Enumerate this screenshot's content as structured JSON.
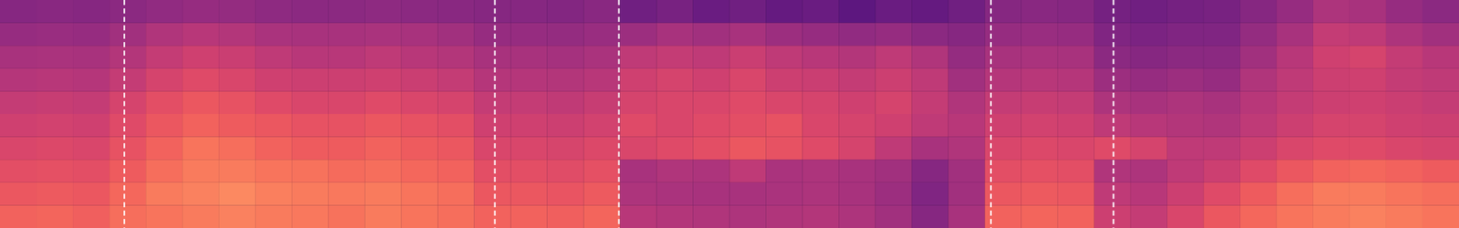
{
  "chart_data": {
    "type": "heatmap",
    "xlim": [
      0,
      100
    ],
    "ylim": [
      0,
      10
    ],
    "tick_labels": false,
    "colorlim": [
      0,
      1
    ],
    "dividers": [
      8.5,
      33.9,
      42.4,
      67.9,
      76.3
    ],
    "cells": [
      [
        0.72,
        0.73,
        0.71,
        0.76,
        0.78,
        0.8,
        0.82,
        0.8,
        0.79,
        0.77,
        0.8,
        0.78,
        0.76,
        0.72,
        0.72,
        0.71,
        0.73,
        0.48,
        0.46,
        0.45,
        0.44,
        0.45,
        0.46,
        0.44,
        0.4,
        0.3,
        0.42,
        0.72,
        0.73,
        0.72,
        0.55,
        0.52,
        0.6,
        0.68,
        0.74,
        0.78,
        0.8,
        0.82,
        0.8,
        0.78
      ],
      [
        0.68,
        0.69,
        0.68,
        0.74,
        0.8,
        0.82,
        0.84,
        0.81,
        0.8,
        0.79,
        0.8,
        0.78,
        0.76,
        0.68,
        0.68,
        0.67,
        0.69,
        0.44,
        0.43,
        0.42,
        0.42,
        0.43,
        0.44,
        0.42,
        0.38,
        0.28,
        0.4,
        0.68,
        0.69,
        0.68,
        0.5,
        0.48,
        0.55,
        0.62,
        0.7,
        0.76,
        0.8,
        0.8,
        0.78,
        0.76
      ],
      [
        0.64,
        0.65,
        0.64,
        0.7,
        0.76,
        0.8,
        0.8,
        0.78,
        0.77,
        0.75,
        0.76,
        0.74,
        0.72,
        0.64,
        0.64,
        0.63,
        0.65,
        0.42,
        0.45,
        0.44,
        0.5,
        0.43,
        0.44,
        0.42,
        0.4,
        0.3,
        0.4,
        0.64,
        0.65,
        0.64,
        0.45,
        0.44,
        0.5,
        0.55,
        0.62,
        0.68,
        0.72,
        0.74,
        0.72,
        0.7
      ],
      [
        0.6,
        0.61,
        0.6,
        0.66,
        0.72,
        0.78,
        0.76,
        0.72,
        0.7,
        0.7,
        0.72,
        0.7,
        0.68,
        0.6,
        0.6,
        0.59,
        0.61,
        0.6,
        0.62,
        0.64,
        0.68,
        0.66,
        0.62,
        0.58,
        0.5,
        0.42,
        0.45,
        0.6,
        0.61,
        0.6,
        0.62,
        0.58,
        0.5,
        0.5,
        0.55,
        0.6,
        0.62,
        0.62,
        0.6,
        0.58
      ],
      [
        0.56,
        0.57,
        0.56,
        0.62,
        0.68,
        0.72,
        0.7,
        0.68,
        0.66,
        0.66,
        0.68,
        0.66,
        0.64,
        0.56,
        0.56,
        0.55,
        0.57,
        0.62,
        0.6,
        0.62,
        0.64,
        0.66,
        0.6,
        0.58,
        0.56,
        0.5,
        0.48,
        0.56,
        0.57,
        0.56,
        0.5,
        0.48,
        0.46,
        0.45,
        0.5,
        0.55,
        0.58,
        0.58,
        0.56,
        0.55
      ],
      [
        0.52,
        0.53,
        0.52,
        0.58,
        0.64,
        0.68,
        0.66,
        0.62,
        0.6,
        0.6,
        0.62,
        0.6,
        0.58,
        0.52,
        0.52,
        0.51,
        0.53,
        0.58,
        0.6,
        0.6,
        0.62,
        0.6,
        0.58,
        0.56,
        0.58,
        0.52,
        0.45,
        0.52,
        0.53,
        0.52,
        0.44,
        0.42,
        0.44,
        0.42,
        0.48,
        0.52,
        0.55,
        0.56,
        0.54,
        0.52
      ],
      [
        0.47,
        0.48,
        0.47,
        0.52,
        0.58,
        0.62,
        0.6,
        0.56,
        0.55,
        0.55,
        0.56,
        0.54,
        0.52,
        0.47,
        0.47,
        0.46,
        0.48,
        0.56,
        0.58,
        0.56,
        0.6,
        0.55,
        0.54,
        0.52,
        0.55,
        0.5,
        0.4,
        0.47,
        0.48,
        0.47,
        0.38,
        0.36,
        0.38,
        0.36,
        0.45,
        0.5,
        0.55,
        0.56,
        0.52,
        0.5
      ],
      [
        0.42,
        0.43,
        0.42,
        0.46,
        0.52,
        0.56,
        0.54,
        0.5,
        0.48,
        0.48,
        0.5,
        0.48,
        0.46,
        0.42,
        0.42,
        0.41,
        0.43,
        0.5,
        0.52,
        0.5,
        0.54,
        0.5,
        0.48,
        0.46,
        0.5,
        0.45,
        0.35,
        0.42,
        0.43,
        0.42,
        0.32,
        0.3,
        0.32,
        0.32,
        0.4,
        0.48,
        0.56,
        0.58,
        0.52,
        0.48
      ],
      [
        0.36,
        0.37,
        0.36,
        0.4,
        0.45,
        0.48,
        0.46,
        0.43,
        0.42,
        0.42,
        0.43,
        0.42,
        0.4,
        0.36,
        0.36,
        0.35,
        0.37,
        0.38,
        0.42,
        0.4,
        0.42,
        0.38,
        0.36,
        0.34,
        0.36,
        0.32,
        0.3,
        0.36,
        0.37,
        0.36,
        0.28,
        0.26,
        0.28,
        0.28,
        0.35,
        0.42,
        0.52,
        0.5,
        0.44,
        0.4
      ],
      [
        0.3,
        0.31,
        0.3,
        0.32,
        0.34,
        0.36,
        0.35,
        0.33,
        0.32,
        0.32,
        0.33,
        0.32,
        0.31,
        0.3,
        0.3,
        0.29,
        0.31,
        0.22,
        0.25,
        0.2,
        0.22,
        0.18,
        0.2,
        0.15,
        0.2,
        0.18,
        0.22,
        0.3,
        0.31,
        0.3,
        0.24,
        0.22,
        0.24,
        0.25,
        0.3,
        0.36,
        0.44,
        0.42,
        0.36,
        0.32
      ]
    ]
  }
}
